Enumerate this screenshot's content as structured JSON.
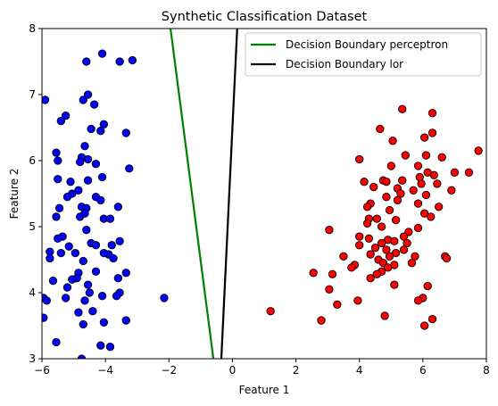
{
  "chart_data": {
    "type": "scatter",
    "title": "Synthetic Classification Dataset",
    "xlabel": "Feature 1",
    "ylabel": "Feature 2",
    "xlim": [
      -6,
      8
    ],
    "ylim": [
      3,
      8
    ],
    "xticks": [
      "-6",
      "-4",
      "-2",
      "0",
      "2",
      "4",
      "6",
      "8"
    ],
    "yticks": [
      "3",
      "4",
      "5",
      "6",
      "7",
      "8"
    ],
    "grid": false,
    "legend_position": "top-right",
    "lines": [
      {
        "name": "Decision Boundary perceptron",
        "color": "#008000",
        "x": [
          -1.95,
          -0.6
        ],
        "y": [
          8,
          3
        ]
      },
      {
        "name": "Decision Boundary lor",
        "color": "#000000",
        "x": [
          0.15,
          -0.35
        ],
        "y": [
          8,
          3
        ]
      }
    ],
    "series": [
      {
        "color": "#0000ff",
        "points": [
          [
            -4.1,
            7.62
          ],
          [
            -4.6,
            7.5
          ],
          [
            -3.55,
            7.5
          ],
          [
            -3.15,
            7.52
          ],
          [
            -4.55,
            7.0
          ],
          [
            -4.7,
            6.92
          ],
          [
            -5.9,
            6.92
          ],
          [
            -4.35,
            6.85
          ],
          [
            -5.25,
            6.68
          ],
          [
            -5.4,
            6.6
          ],
          [
            -4.05,
            6.55
          ],
          [
            -4.45,
            6.48
          ],
          [
            -4.15,
            6.45
          ],
          [
            -3.35,
            6.42
          ],
          [
            -4.65,
            6.22
          ],
          [
            -5.55,
            6.12
          ],
          [
            -5.5,
            6.0
          ],
          [
            -4.75,
            6.05
          ],
          [
            -4.55,
            6.02
          ],
          [
            -4.8,
            5.98
          ],
          [
            -4.3,
            5.95
          ],
          [
            -3.25,
            5.88
          ],
          [
            -4.1,
            5.75
          ],
          [
            -5.5,
            5.72
          ],
          [
            -5.1,
            5.68
          ],
          [
            -4.55,
            5.7
          ],
          [
            -4.85,
            5.55
          ],
          [
            -5.05,
            5.5
          ],
          [
            -4.3,
            5.45
          ],
          [
            -5.2,
            5.45
          ],
          [
            -4.15,
            5.4
          ],
          [
            -5.45,
            5.28
          ],
          [
            -4.75,
            5.3
          ],
          [
            -4.6,
            5.28
          ],
          [
            -3.6,
            5.3
          ],
          [
            -4.65,
            5.2
          ],
          [
            -4.8,
            5.15
          ],
          [
            -4.05,
            5.12
          ],
          [
            -5.55,
            5.15
          ],
          [
            -3.85,
            5.12
          ],
          [
            -4.6,
            4.95
          ],
          [
            -5.35,
            4.85
          ],
          [
            -5.5,
            4.82
          ],
          [
            -4.45,
            4.75
          ],
          [
            -4.3,
            4.72
          ],
          [
            -3.55,
            4.78
          ],
          [
            -3.8,
            4.72
          ],
          [
            -5.15,
            4.7
          ],
          [
            -5.75,
            4.62
          ],
          [
            -5.75,
            4.52
          ],
          [
            -5.4,
            4.6
          ],
          [
            -4.95,
            4.6
          ],
          [
            -3.9,
            4.58
          ],
          [
            -4.05,
            4.6
          ],
          [
            -4.7,
            4.48
          ],
          [
            -3.75,
            4.52
          ],
          [
            -4.85,
            4.3
          ],
          [
            -4.3,
            4.32
          ],
          [
            -3.35,
            4.3
          ],
          [
            -4.9,
            4.22
          ],
          [
            -5.65,
            4.18
          ],
          [
            -5.05,
            4.2
          ],
          [
            -3.6,
            4.22
          ],
          [
            -4.55,
            4.12
          ],
          [
            -5.2,
            4.08
          ],
          [
            -3.55,
            4.0
          ],
          [
            -4.5,
            4.0
          ],
          [
            -4.1,
            3.95
          ],
          [
            -5.95,
            3.92
          ],
          [
            -5.85,
            3.88
          ],
          [
            -5.25,
            3.92
          ],
          [
            -3.65,
            3.95
          ],
          [
            -2.15,
            3.92
          ],
          [
            -4.65,
            3.88
          ],
          [
            -4.85,
            3.7
          ],
          [
            -4.4,
            3.72
          ],
          [
            -5.95,
            3.62
          ],
          [
            -4.05,
            3.55
          ],
          [
            -3.35,
            3.58
          ],
          [
            -4.7,
            3.52
          ],
          [
            -5.55,
            3.25
          ],
          [
            -4.15,
            3.2
          ],
          [
            -3.85,
            3.18
          ],
          [
            -4.75,
            3.0
          ]
        ]
      },
      {
        "color": "#ff0000",
        "points": [
          [
            5.35,
            6.78
          ],
          [
            6.3,
            6.72
          ],
          [
            6.3,
            6.42
          ],
          [
            6.05,
            6.35
          ],
          [
            4.65,
            6.48
          ],
          [
            5.05,
            6.3
          ],
          [
            7.75,
            6.15
          ],
          [
            6.1,
            6.08
          ],
          [
            4.0,
            6.02
          ],
          [
            5.45,
            6.08
          ],
          [
            6.6,
            6.05
          ],
          [
            5.0,
            5.92
          ],
          [
            7.0,
            5.82
          ],
          [
            5.85,
            5.92
          ],
          [
            6.15,
            5.82
          ],
          [
            5.9,
            5.75
          ],
          [
            6.35,
            5.78
          ],
          [
            7.45,
            5.82
          ],
          [
            4.15,
            5.68
          ],
          [
            4.75,
            5.7
          ],
          [
            4.85,
            5.68
          ],
          [
            5.35,
            5.7
          ],
          [
            5.95,
            5.65
          ],
          [
            6.45,
            5.65
          ],
          [
            4.45,
            5.6
          ],
          [
            5.2,
            5.58
          ],
          [
            5.7,
            5.55
          ],
          [
            6.9,
            5.55
          ],
          [
            5.3,
            5.5
          ],
          [
            6.1,
            5.48
          ],
          [
            4.85,
            5.45
          ],
          [
            5.2,
            5.4
          ],
          [
            4.35,
            5.35
          ],
          [
            5.85,
            5.35
          ],
          [
            4.25,
            5.3
          ],
          [
            6.5,
            5.3
          ],
          [
            4.95,
            5.25
          ],
          [
            6.05,
            5.2
          ],
          [
            6.25,
            5.15
          ],
          [
            4.3,
            5.12
          ],
          [
            4.55,
            5.12
          ],
          [
            5.15,
            5.1
          ],
          [
            4.25,
            5.05
          ],
          [
            4.7,
            5.0
          ],
          [
            5.55,
            4.92
          ],
          [
            3.05,
            4.95
          ],
          [
            5.85,
            4.98
          ],
          [
            5.4,
            4.85
          ],
          [
            4.3,
            4.82
          ],
          [
            4.0,
            4.85
          ],
          [
            4.9,
            4.8
          ],
          [
            5.1,
            4.78
          ],
          [
            5.5,
            4.75
          ],
          [
            4.0,
            4.72
          ],
          [
            4.7,
            4.75
          ],
          [
            4.5,
            4.68
          ],
          [
            5.4,
            4.65
          ],
          [
            4.85,
            4.65
          ],
          [
            5.15,
            4.6
          ],
          [
            4.95,
            4.55
          ],
          [
            5.75,
            4.55
          ],
          [
            6.7,
            4.55
          ],
          [
            6.75,
            4.52
          ],
          [
            4.35,
            4.58
          ],
          [
            3.5,
            4.55
          ],
          [
            4.6,
            4.5
          ],
          [
            4.75,
            4.45
          ],
          [
            5.1,
            4.42
          ],
          [
            3.85,
            4.42
          ],
          [
            4.9,
            4.38
          ],
          [
            5.65,
            4.45
          ],
          [
            4.7,
            4.32
          ],
          [
            4.55,
            4.28
          ],
          [
            3.75,
            4.38
          ],
          [
            2.55,
            4.3
          ],
          [
            4.35,
            4.22
          ],
          [
            3.15,
            4.28
          ],
          [
            3.05,
            4.05
          ],
          [
            5.1,
            4.12
          ],
          [
            6.15,
            4.1
          ],
          [
            6.0,
            3.92
          ],
          [
            5.85,
            3.88
          ],
          [
            3.95,
            3.88
          ],
          [
            3.3,
            3.82
          ],
          [
            1.2,
            3.72
          ],
          [
            4.8,
            3.65
          ],
          [
            2.8,
            3.58
          ],
          [
            6.3,
            3.6
          ],
          [
            6.05,
            3.5
          ]
        ]
      }
    ]
  }
}
